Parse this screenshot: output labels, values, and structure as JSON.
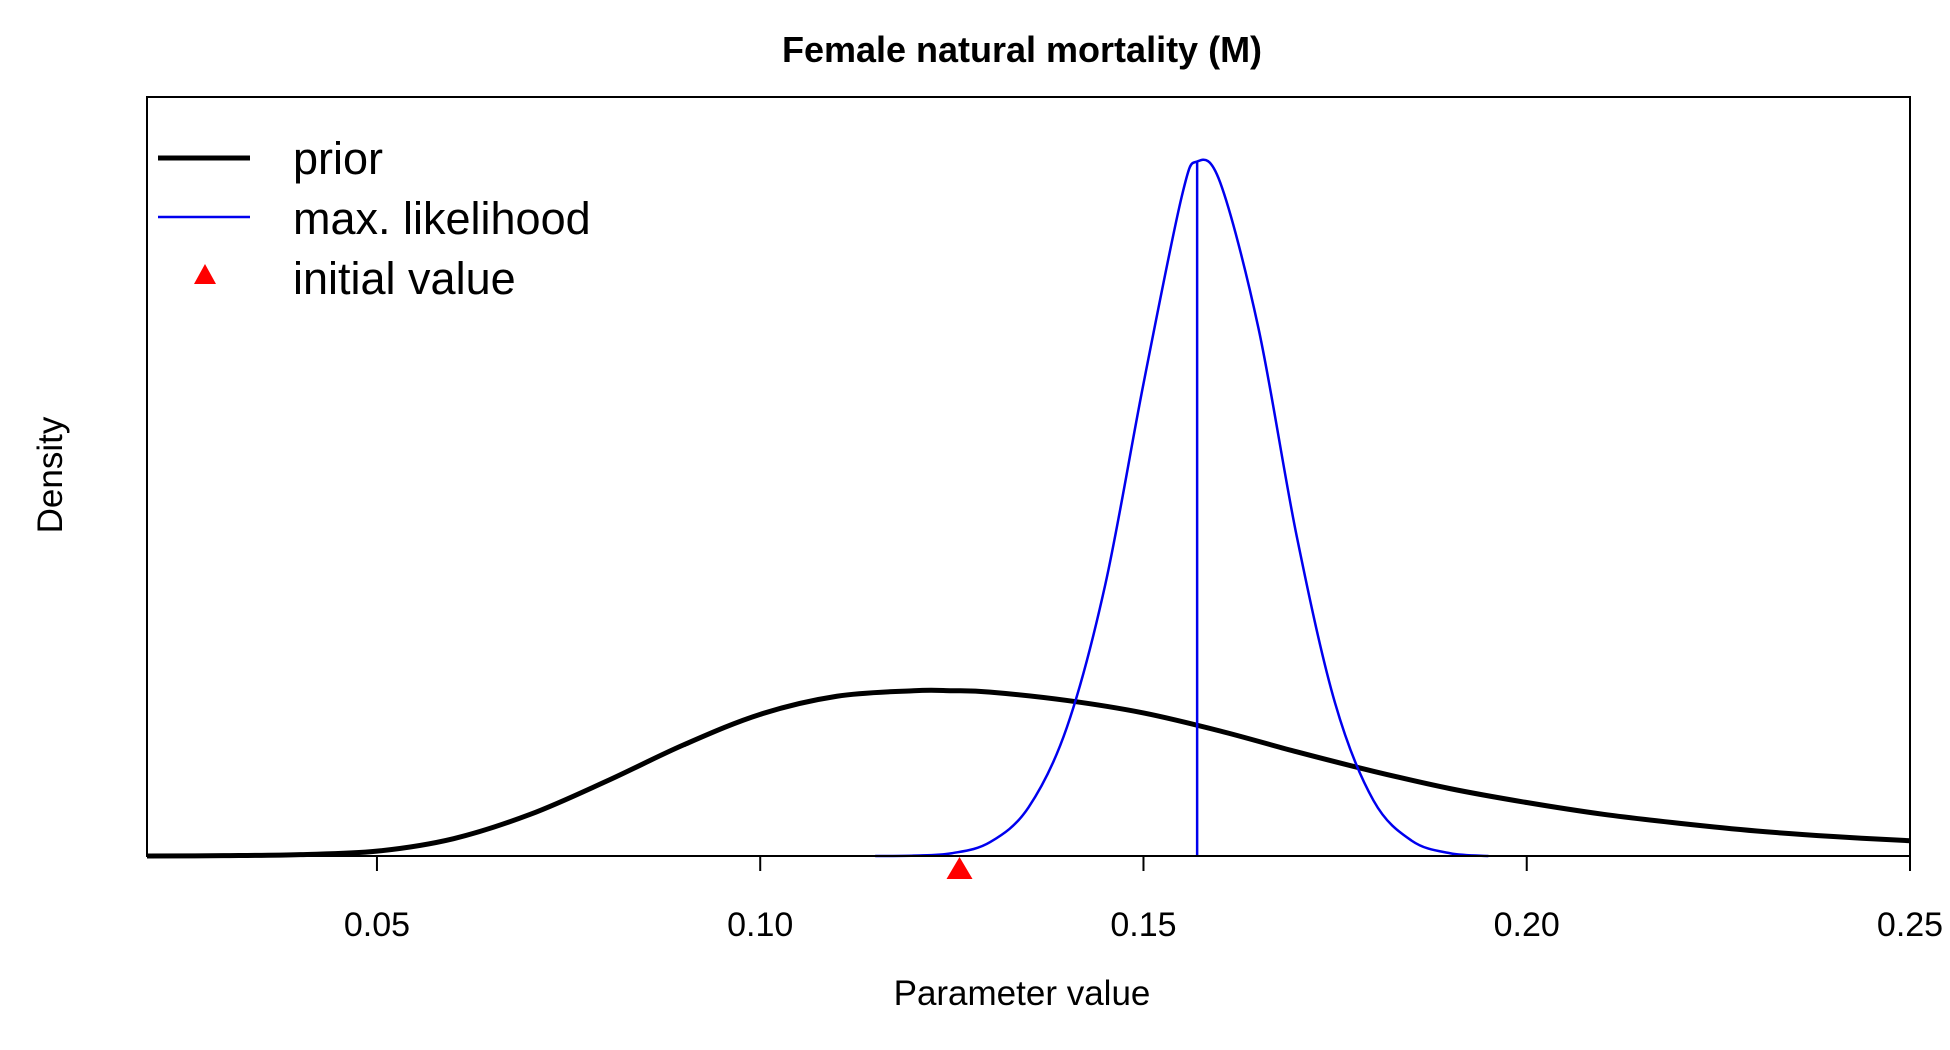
{
  "chart_data": {
    "type": "line",
    "title": "Female natural mortality (M)",
    "xlabel": "Parameter value",
    "ylabel": "Density",
    "xlim": [
      0.02,
      0.25
    ],
    "ylim": [
      0,
      1.0
    ],
    "x_ticks": [
      0.05,
      0.1,
      0.15,
      0.2,
      0.25
    ],
    "x_tick_labels": [
      "0.05",
      "0.10",
      "0.15",
      "0.20",
      "0.25"
    ],
    "y_ticks_shown": false,
    "grid": false,
    "legend_position": "top-left",
    "series": [
      {
        "name": "prior",
        "color": "#000000",
        "style": "thick-line",
        "x": [
          0.02,
          0.03,
          0.04,
          0.05,
          0.06,
          0.07,
          0.08,
          0.09,
          0.1,
          0.11,
          0.12,
          0.125,
          0.13,
          0.14,
          0.15,
          0.16,
          0.17,
          0.18,
          0.19,
          0.2,
          0.21,
          0.22,
          0.23,
          0.24,
          0.25
        ],
        "values": [
          0.0,
          0.0005,
          0.002,
          0.007,
          0.025,
          0.06,
          0.108,
          0.16,
          0.204,
          0.23,
          0.238,
          0.238,
          0.236,
          0.224,
          0.206,
          0.18,
          0.15,
          0.122,
          0.097,
          0.077,
          0.06,
          0.047,
          0.036,
          0.028,
          0.022
        ]
      },
      {
        "name": "max. likelihood",
        "color": "#0000ee",
        "style": "thin-line",
        "x": [
          0.115,
          0.12,
          0.125,
          0.13,
          0.135,
          0.14,
          0.145,
          0.15,
          0.155,
          0.157,
          0.16,
          0.165,
          0.17,
          0.175,
          0.18,
          0.185,
          0.19,
          0.195
        ],
        "values": [
          0.0,
          0.0005,
          0.004,
          0.02,
          0.07,
          0.185,
          0.39,
          0.68,
          0.95,
          1.0,
          0.97,
          0.76,
          0.46,
          0.22,
          0.08,
          0.022,
          0.004,
          0.0
        ]
      }
    ],
    "mle_vertical_line": {
      "x": 0.157,
      "color": "#0000ee"
    },
    "initial_value": {
      "name": "initial value",
      "x": 0.126,
      "color": "#ff0000",
      "marker": "triangle"
    },
    "legend_entries": [
      "prior",
      "max. likelihood",
      "initial value"
    ]
  }
}
